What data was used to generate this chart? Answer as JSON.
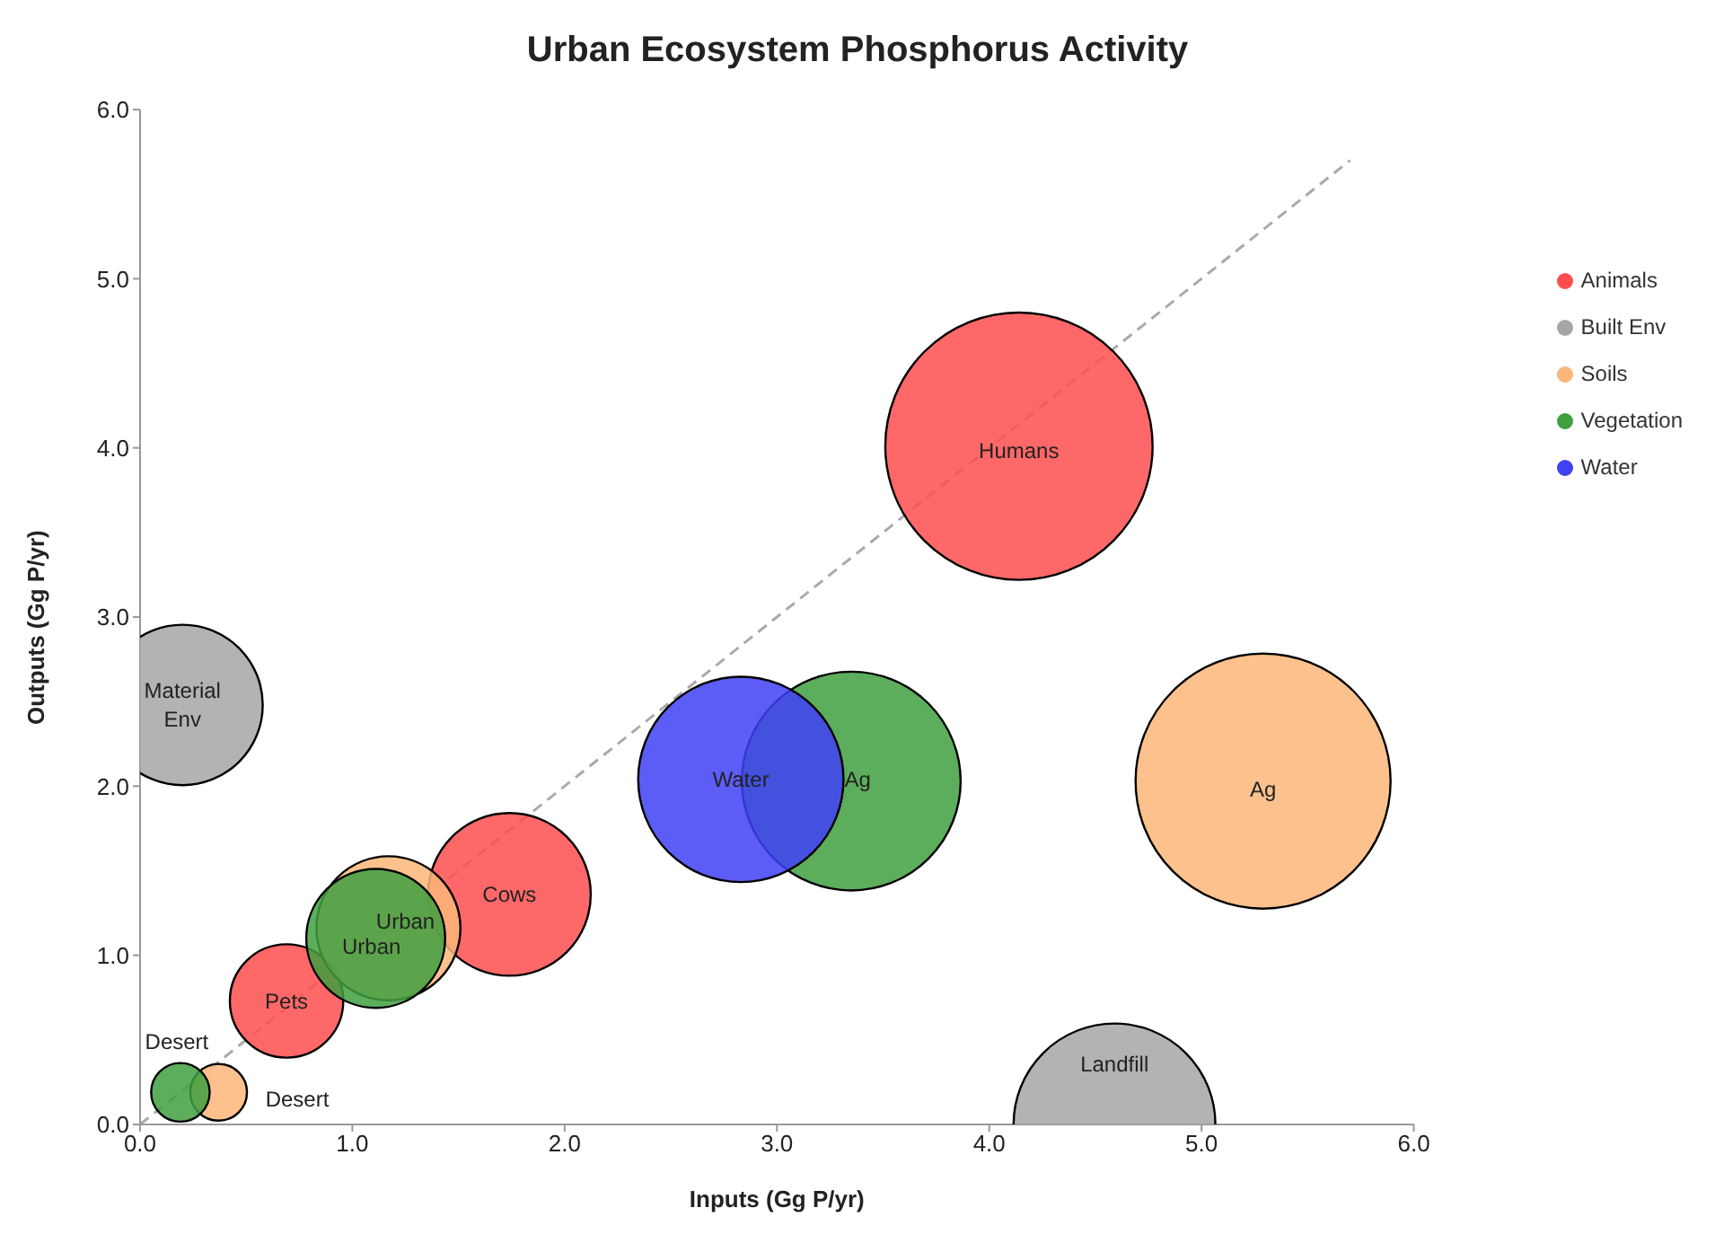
{
  "chart_data": {
    "type": "bubble",
    "title": "Urban Ecosystem Phosphorus Activity",
    "xlabel": "Inputs (Gg P/yr)",
    "ylabel": "Outputs (Gg P/yr)",
    "xlim": [
      0,
      6
    ],
    "ylim": [
      0,
      6
    ],
    "xticks": [
      {
        "value": 0,
        "label": "0.0"
      },
      {
        "value": 1,
        "label": "1.0"
      },
      {
        "value": 2,
        "label": "2.0"
      },
      {
        "value": 3,
        "label": "3.0"
      },
      {
        "value": 4,
        "label": "4.0"
      },
      {
        "value": 5,
        "label": "5.0"
      },
      {
        "value": 6,
        "label": "6.0"
      }
    ],
    "yticks": [
      {
        "value": 0,
        "label": "0.0"
      },
      {
        "value": 1,
        "label": "1.0"
      },
      {
        "value": 2,
        "label": "2.0"
      },
      {
        "value": 3,
        "label": "3.0"
      },
      {
        "value": 4,
        "label": "4.0"
      },
      {
        "value": 5,
        "label": "5.0"
      },
      {
        "value": 6,
        "label": "6.0"
      }
    ],
    "grid": false,
    "legend": "right",
    "marker": "circle",
    "series": [
      {
        "name": "Animals",
        "color": "#ff4d4d",
        "x": [
          4.14,
          1.74,
          0.69
        ],
        "values": [
          4.01,
          1.36,
          0.73
        ],
        "sizes": [
          1,
          0.37,
          0.18
        ]
      },
      {
        "name": "Built Env",
        "color": "#a6a6a6",
        "x": [
          0.2,
          4.59
        ],
        "values": [
          2.48,
          0
        ],
        "sizes": [
          0.36,
          0.57
        ]
      },
      {
        "name": "Soils",
        "color": "#fbb679",
        "x": [
          5.29,
          1.17,
          0.37
        ],
        "values": [
          2.03,
          1.16,
          0.19
        ],
        "sizes": [
          0.91,
          0.29,
          0.045
        ]
      },
      {
        "name": "Vegetation",
        "color": "#3f9f3f",
        "x": [
          3.35,
          1.11,
          0.19
        ],
        "values": [
          2.03,
          1.1,
          0.19
        ],
        "sizes": [
          0.67,
          0.27,
          0.048
        ]
      },
      {
        "name": "Water",
        "color": "#4040f5",
        "x": [
          2.83
        ],
        "values": [
          2.04
        ],
        "sizes": [
          0.59
        ]
      },
      {
        "type": "line",
        "color": "#aaaaaa",
        "line_style": "dashed",
        "marker": "none",
        "x": [
          0,
          5.7
        ],
        "values": [
          0,
          5.7
        ]
      }
    ],
    "annotations": [
      {
        "text": "Humans",
        "x": 4.14,
        "y": 3.98
      },
      {
        "text": "Cows",
        "x": 1.74,
        "y": 1.36
      },
      {
        "text": "Pets",
        "x": 0.69,
        "y": 0.73
      },
      {
        "text": "Material Env",
        "x": 0.2,
        "y": 2.48
      },
      {
        "text": "Landfill",
        "x": 4.59,
        "y": 0
      },
      {
        "text": "Water",
        "x": 2.83,
        "y": 2.04
      },
      {
        "text": "Ag",
        "x": 3.38,
        "y": 2.04
      },
      {
        "text": "Ag",
        "x": 5.29,
        "y": 1.98
      },
      {
        "text": "Urban",
        "x": 1.25,
        "y": 1.2
      },
      {
        "text": "Urban",
        "x": 1.09,
        "y": 1.05
      },
      {
        "text": "Desert",
        "x": 0.19,
        "y": 0.19
      },
      {
        "text": "Desert",
        "x": 0.37,
        "y": 0.19
      }
    ]
  }
}
